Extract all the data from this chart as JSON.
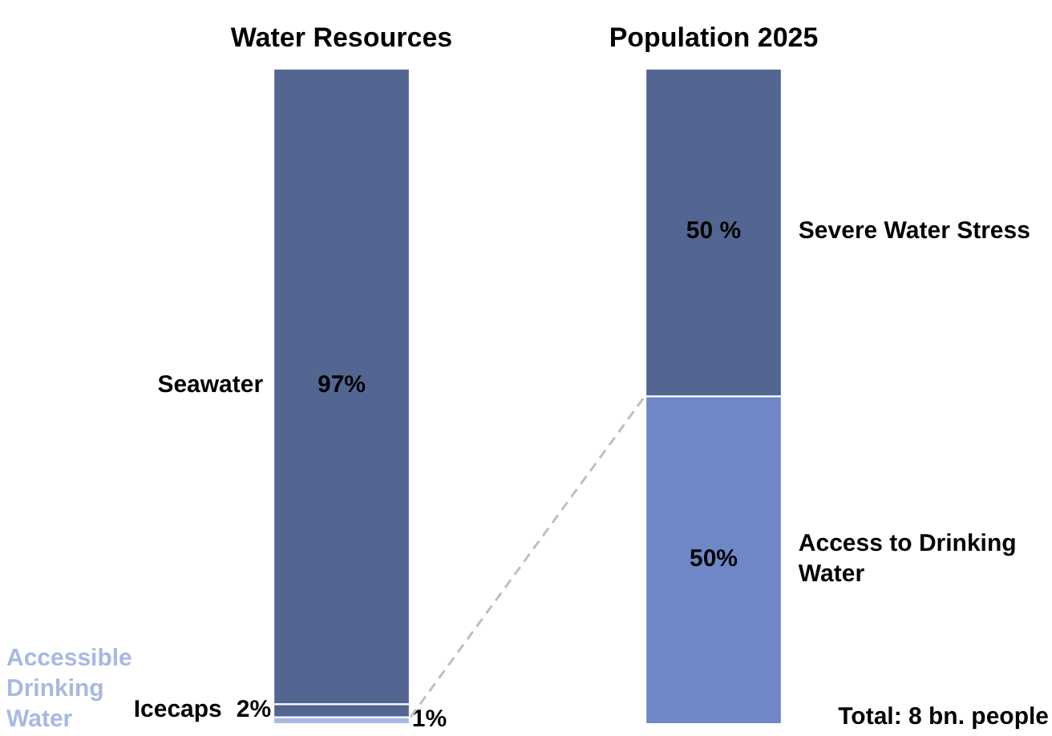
{
  "chart_data": {
    "type": "bar",
    "stacked": true,
    "categories": [
      "Water Resources",
      "Population 2025"
    ],
    "series": [
      {
        "name": "Accessible Drinking Water",
        "color": "#a8b8e4",
        "values": [
          1,
          null
        ],
        "value_labels": [
          "1%",
          null
        ]
      },
      {
        "name": "Icecaps",
        "color": "#536591",
        "values": [
          2,
          null
        ],
        "value_labels": [
          "2%",
          null
        ]
      },
      {
        "name": "Seawater",
        "color": "#536591",
        "values": [
          97,
          null
        ],
        "value_labels": [
          "97%",
          null
        ]
      },
      {
        "name": "Access to Drinking Water",
        "color": "#6f87c7",
        "values": [
          null,
          50
        ],
        "value_labels": [
          null,
          "50%"
        ]
      },
      {
        "name": "Severe Water Stress",
        "color": "#536591",
        "values": [
          null,
          50
        ],
        "value_labels": [
          null,
          "50 %"
        ]
      }
    ],
    "annotations": [
      "Total: 8 bn. people"
    ],
    "legend": false,
    "grid": false
  }
}
